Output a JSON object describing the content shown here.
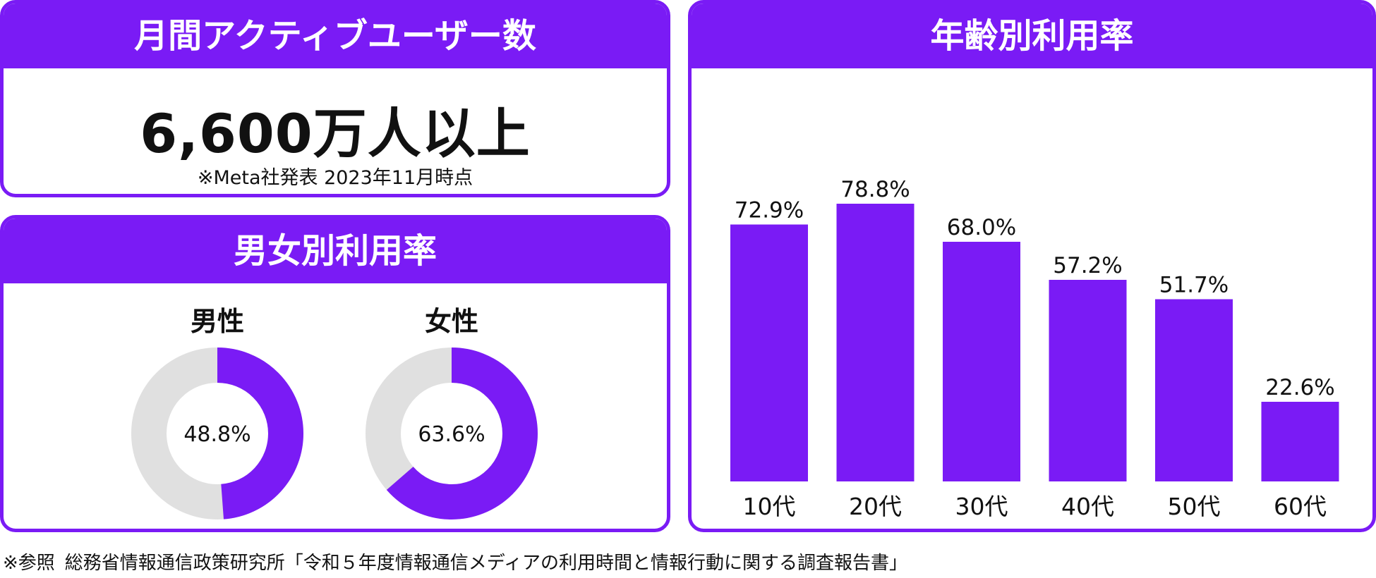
{
  "mau": {
    "title": "月間アクティブユーザー数",
    "value": "6,600万人以上",
    "note": "※Meta社発表 2023年11月時点"
  },
  "gender": {
    "title": "男女別利用率",
    "items": [
      {
        "label": "男性",
        "display": "48.8%",
        "value": 48.8
      },
      {
        "label": "女性",
        "display": "63.6%",
        "value": 63.6
      }
    ]
  },
  "age": {
    "title": "年齢別利用率"
  },
  "footer": {
    "prefix": "※参照",
    "source": "総務省情報通信政策研究所「令和５年度情報通信メディアの利用時間と情報行動に関する調査報告書」"
  },
  "colors": {
    "accent": "#7a1bf5",
    "track": "#e0e0e0"
  },
  "chart_data": [
    {
      "type": "bar",
      "title": "年齢別利用率",
      "categories": [
        "10代",
        "20代",
        "30代",
        "40代",
        "50代",
        "60代"
      ],
      "values": [
        72.9,
        78.8,
        68.0,
        57.2,
        51.7,
        22.6
      ],
      "labels": [
        "72.9%",
        "78.8%",
        "68.0%",
        "57.2%",
        "51.7%",
        "22.6%"
      ],
      "ylim": [
        0,
        100
      ],
      "grid": false
    },
    {
      "type": "pie",
      "title": "男女別利用率",
      "slices": [
        {
          "name": "男性",
          "value": 48.8
        },
        {
          "name": "女性",
          "value": 63.6
        }
      ]
    }
  ]
}
